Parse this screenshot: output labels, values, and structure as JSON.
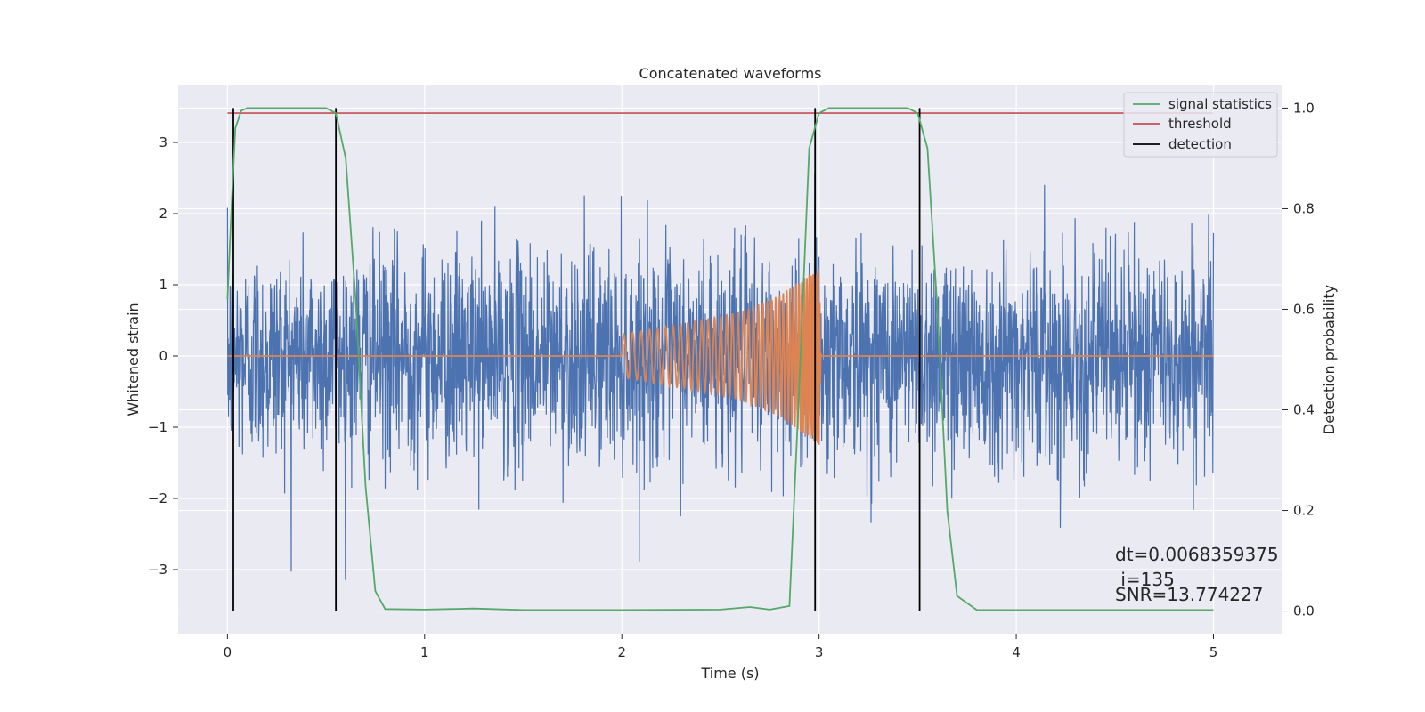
{
  "chart_data": {
    "type": "line",
    "title": "Concatenated waveforms",
    "xlabel": "Time (s)",
    "ylabel_left": "Whitened strain",
    "ylabel_right": "Detection probability",
    "xlim": [
      -0.25,
      5.35
    ],
    "ylim_left": [
      -3.9,
      3.8
    ],
    "ylim_right": [
      -0.045,
      1.045
    ],
    "xticks": [
      0,
      1,
      2,
      3,
      4,
      5
    ],
    "yticks_left": [
      -3,
      -2,
      -1,
      0,
      1,
      2,
      3
    ],
    "yticks_right": [
      0.0,
      0.2,
      0.4,
      0.6,
      0.8,
      1.0
    ],
    "grid": true,
    "legend_position": "upper-right",
    "legend": [
      "signal statistics",
      "threshold",
      "detection"
    ],
    "colors": {
      "noise": "#4c72b0",
      "waveform": "#dd8452",
      "signal_statistics": "#55a868",
      "threshold": "#c44e52",
      "detection": "#000000",
      "plot_background": "#eaeaf2",
      "grid": "#ffffff"
    },
    "series": [
      {
        "role": "whitened_noise",
        "x_range": [
          0,
          5
        ],
        "typical_amplitude": 0.75,
        "peak_amplitude": 3.45
      },
      {
        "role": "injected_chirp",
        "x": [
          0,
          2,
          2.2,
          2.4,
          2.6,
          2.8,
          2.95,
          3.0,
          3.01,
          5
        ],
        "envelope": [
          0,
          0.3,
          0.4,
          0.5,
          0.62,
          0.85,
          1.15,
          1.25,
          0,
          0
        ]
      },
      {
        "name": "signal statistics",
        "axis": "right",
        "x": [
          0,
          0.02,
          0.04,
          0.07,
          0.1,
          0.5,
          0.55,
          0.6,
          0.65,
          0.7,
          0.75,
          0.8,
          1.0,
          1.25,
          1.5,
          2.0,
          2.5,
          2.65,
          2.75,
          2.85,
          2.9,
          2.95,
          3.0,
          3.05,
          3.45,
          3.5,
          3.55,
          3.6,
          3.65,
          3.7,
          3.8,
          5.0
        ],
        "values": [
          0.62,
          0.8,
          0.96,
          0.995,
          1.0,
          1.0,
          0.99,
          0.9,
          0.62,
          0.25,
          0.04,
          0.004,
          0.003,
          0.005,
          0.002,
          0.002,
          0.003,
          0.008,
          0.003,
          0.01,
          0.45,
          0.92,
          0.99,
          1.0,
          1.0,
          0.99,
          0.92,
          0.6,
          0.2,
          0.03,
          0.002,
          0.002
        ]
      },
      {
        "name": "threshold",
        "axis": "right",
        "x": [
          0,
          5
        ],
        "values": [
          0.99,
          0.99
        ]
      },
      {
        "name": "detection",
        "axis": "left",
        "lines_x": [
          0.03,
          0.55,
          2.98,
          3.51
        ]
      }
    ],
    "annotations": [
      "dt=0.0068359375",
      " i=135",
      "SNR=13.774227"
    ]
  }
}
